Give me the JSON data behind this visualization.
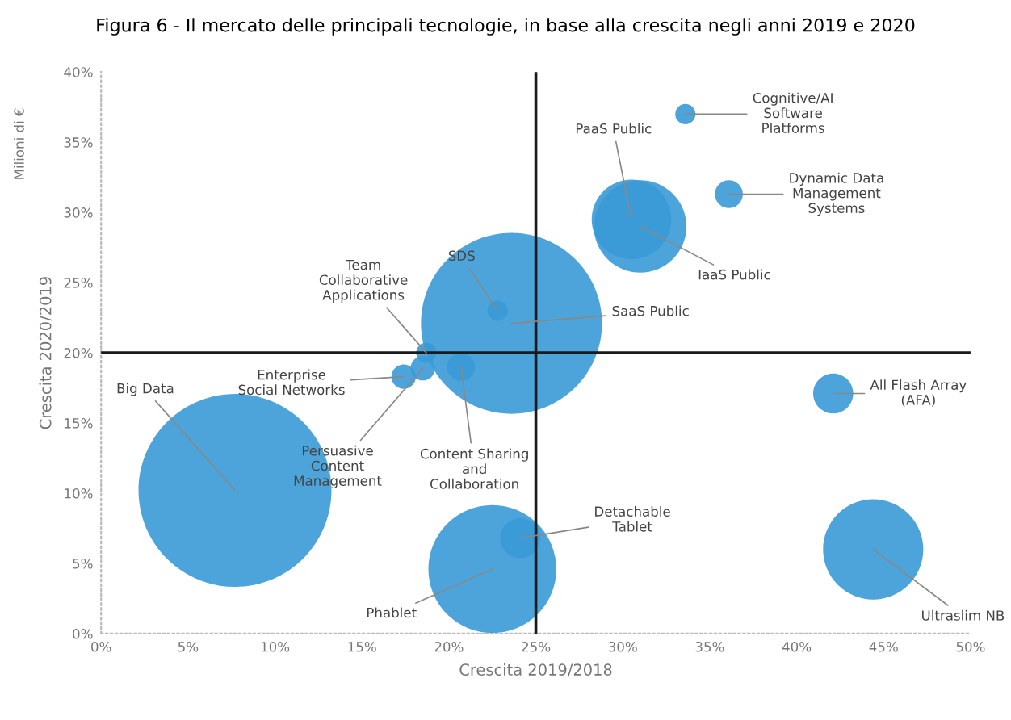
{
  "chart_data": {
    "type": "bubble",
    "title": "Figura 6 - Il mercato delle principali tecnologie, in base alla crescita negli anni 2019 e 2020",
    "xlabel": "Crescita 2019/2018",
    "ylabel": "Crescita 2020/2019",
    "annotations": [
      "Milioni di €"
    ],
    "xlim": [
      0,
      50
    ],
    "xticks": [
      {
        "value": 0,
        "label": "0%"
      },
      {
        "value": 5,
        "label": "5%"
      },
      {
        "value": 10,
        "label": "10%"
      },
      {
        "value": 15,
        "label": "15%"
      },
      {
        "value": 20,
        "label": "20%"
      },
      {
        "value": 25,
        "label": "25%"
      },
      {
        "value": 30,
        "label": "30%"
      },
      {
        "value": 35,
        "label": "35%"
      },
      {
        "value": 40,
        "label": "40%"
      },
      {
        "value": 45,
        "label": "45%"
      },
      {
        "value": 50,
        "label": "50%"
      }
    ],
    "ylim": [
      0,
      40
    ],
    "yticks": [
      {
        "value": 0,
        "label": "0%"
      },
      {
        "value": 5,
        "label": "5%"
      },
      {
        "value": 10,
        "label": "10%"
      },
      {
        "value": 15,
        "label": "15%"
      },
      {
        "value": 20,
        "label": "20%"
      },
      {
        "value": 25,
        "label": "25%"
      },
      {
        "value": 30,
        "label": "30%"
      },
      {
        "value": 35,
        "label": "35%"
      },
      {
        "value": 40,
        "label": "40%"
      }
    ],
    "ref_lines": [
      {
        "axis": "x",
        "value": 25,
        "color": "#1a1a1a"
      },
      {
        "axis": "y",
        "value": 20,
        "color": "#1a1a1a"
      }
    ],
    "grid": false,
    "legend": false,
    "series": [
      {
        "name": "Big Data",
        "color": "#3a9ad6",
        "x": [
          7.7
        ],
        "values": [
          10.2
        ],
        "sizes": [
          1
        ]
      },
      {
        "name": "SaaS Public",
        "color": "#3a9ad6",
        "x": [
          23.6
        ],
        "values": [
          22.1
        ],
        "sizes": [
          0.88
        ]
      },
      {
        "name": "Phablet",
        "color": "#3a9ad6",
        "x": [
          22.5
        ],
        "values": [
          4.6
        ],
        "sizes": [
          0.44
        ]
      },
      {
        "name": "Ultraslim NB",
        "color": "#3a9ad6",
        "x": [
          44.4
        ],
        "values": [
          6.0
        ],
        "sizes": [
          0.27
        ]
      },
      {
        "name": "IaaS Public",
        "color": "#3a9ad6",
        "x": [
          31.0
        ],
        "values": [
          29.0
        ],
        "sizes": [
          0.23
        ]
      },
      {
        "name": "PaaS Public",
        "color": "#3a9ad6",
        "x": [
          30.5
        ],
        "values": [
          29.5
        ],
        "sizes": [
          0.17
        ]
      },
      {
        "name": "All Flash Array (AFA)",
        "color": "#3a9ad6",
        "x": [
          42.1
        ],
        "values": [
          17.1
        ],
        "sizes": [
          0.043
        ]
      },
      {
        "name": "Detachable Tablet",
        "color": "#3a9ad6",
        "x": [
          24.1
        ],
        "values": [
          6.8
        ],
        "sizes": [
          0.043
        ]
      },
      {
        "name": "Dynamic Data Management Systems",
        "color": "#3a9ad6",
        "x": [
          36.1
        ],
        "values": [
          31.3
        ],
        "sizes": [
          0.021
        ]
      },
      {
        "name": "Content Sharing and Collaboration",
        "color": "#3a9ad6",
        "x": [
          20.7
        ],
        "values": [
          19.0
        ],
        "sizes": [
          0.021
        ]
      },
      {
        "name": "Enterprise Social Networks",
        "color": "#3a9ad6",
        "x": [
          17.4
        ],
        "values": [
          18.3
        ],
        "sizes": [
          0.016
        ]
      },
      {
        "name": "Persuasive Content Management",
        "color": "#3a9ad6",
        "x": [
          18.5
        ],
        "values": [
          18.9
        ],
        "sizes": [
          0.016
        ]
      },
      {
        "name": "Team Collaborative Applications",
        "color": "#3a9ad6",
        "x": [
          18.7
        ],
        "values": [
          20.0
        ],
        "sizes": [
          0.011
        ]
      },
      {
        "name": "Cognitive/AI Software Platforms",
        "color": "#3a9ad6",
        "x": [
          33.6
        ],
        "values": [
          37.0
        ],
        "sizes": [
          0.011
        ]
      },
      {
        "name": "SDS",
        "color": "#3a9ad6",
        "x": [
          22.8
        ],
        "values": [
          23.0
        ],
        "sizes": [
          0.011
        ]
      }
    ]
  }
}
